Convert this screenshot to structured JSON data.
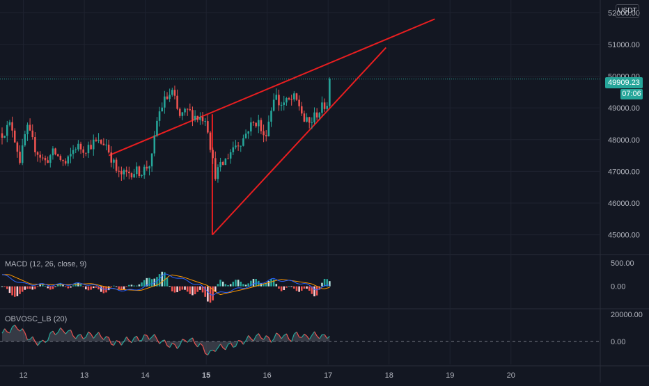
{
  "chart_data": {
    "type": "candlestick",
    "currency_label": "USDT",
    "price_axis": {
      "ylim": [
        44400,
        52400
      ],
      "ticks": [
        "52000.00",
        "51000.00",
        "50000.00",
        "49000.00",
        "48000.00",
        "47000.00",
        "46000.00",
        "45000.00"
      ],
      "tick_values": [
        52000,
        51000,
        50000,
        49000,
        48000,
        47000,
        46000,
        45000
      ]
    },
    "last_price": {
      "value": 49909.23,
      "label": "49909.23",
      "countdown": "07:06",
      "color": "#26a69a"
    },
    "x_axis": {
      "xlim": [
        11.65,
        21.5
      ],
      "labels": [
        "12",
        "13",
        "14",
        "15",
        "16",
        "17",
        "18",
        "19",
        "20"
      ],
      "label_values": [
        12,
        13,
        14,
        15,
        16,
        17,
        18,
        19,
        20
      ],
      "bold_labels": [
        "15"
      ]
    },
    "colors": {
      "up": "#26a69a",
      "down": "#ef5350",
      "pattern": "#e91e20"
    },
    "candle_anchors": [
      [
        11.65,
        48200
      ],
      [
        11.8,
        48500
      ],
      [
        11.95,
        47300
      ],
      [
        12.05,
        48400
      ],
      [
        12.2,
        47700
      ],
      [
        12.35,
        47300
      ],
      [
        12.5,
        47600
      ],
      [
        12.7,
        47200
      ],
      [
        12.85,
        47800
      ],
      [
        13.0,
        47700
      ],
      [
        13.15,
        47900
      ],
      [
        13.25,
        47900
      ],
      [
        13.35,
        47900
      ],
      [
        13.45,
        47400
      ],
      [
        13.55,
        46900
      ],
      [
        13.65,
        46900
      ],
      [
        13.8,
        47000
      ],
      [
        13.95,
        47000
      ],
      [
        14.1,
        47300
      ],
      [
        14.2,
        48700
      ],
      [
        14.3,
        49200
      ],
      [
        14.45,
        49500
      ],
      [
        14.55,
        48700
      ],
      [
        14.7,
        48900
      ],
      [
        14.85,
        48700
      ],
      [
        15.0,
        48700
      ],
      [
        15.06,
        47900
      ],
      [
        15.14,
        46900
      ],
      [
        15.3,
        47300
      ],
      [
        15.45,
        47800
      ],
      [
        15.6,
        48000
      ],
      [
        15.7,
        48400
      ],
      [
        15.85,
        48600
      ],
      [
        15.95,
        48000
      ],
      [
        16.05,
        48800
      ],
      [
        16.12,
        49500
      ],
      [
        16.2,
        49100
      ],
      [
        16.35,
        49200
      ],
      [
        16.45,
        49300
      ],
      [
        16.55,
        49000
      ],
      [
        16.6,
        48600
      ],
      [
        16.7,
        48500
      ],
      [
        16.8,
        48800
      ],
      [
        16.9,
        49000
      ],
      [
        17.0,
        49200
      ],
      [
        17.05,
        49909
      ]
    ],
    "pattern": {
      "upper_line": {
        "x": [
          13.4,
          18.75
        ],
        "y": [
          47500,
          51800
        ]
      },
      "lower_line": {
        "x": [
          15.1,
          17.95
        ],
        "y": [
          45000,
          50900
        ]
      },
      "drop_line": {
        "x": [
          15.1,
          15.1
        ],
        "y": [
          48800,
          45000
        ]
      }
    },
    "macd": {
      "label": "MACD (12, 26, close, 9)",
      "ticks": [
        "500.00",
        "0.00"
      ],
      "tick_values": [
        500,
        0
      ],
      "ylim": [
        -450,
        650
      ],
      "anchors": [
        [
          11.65,
          250
        ],
        [
          12.0,
          50
        ],
        [
          12.5,
          30
        ],
        [
          13.0,
          60
        ],
        [
          13.4,
          -60
        ],
        [
          13.8,
          -90
        ],
        [
          14.1,
          40
        ],
        [
          14.3,
          250
        ],
        [
          14.5,
          200
        ],
        [
          14.9,
          20
        ],
        [
          15.1,
          -180
        ],
        [
          15.3,
          -120
        ],
        [
          15.6,
          -30
        ],
        [
          15.9,
          80
        ],
        [
          16.1,
          150
        ],
        [
          16.3,
          120
        ],
        [
          16.6,
          60
        ],
        [
          16.8,
          -60
        ],
        [
          17.05,
          30
        ]
      ],
      "macd_color": "#2962ff",
      "signal_color": "#ff9800"
    },
    "obvosc": {
      "label": "OBVOSC_LB (20)",
      "ticks": [
        "20000.00",
        "0.00"
      ],
      "tick_values": [
        20000,
        0
      ],
      "ylim": [
        -17000,
        23000
      ],
      "anchors": [
        [
          11.65,
          6000
        ],
        [
          11.9,
          11000
        ],
        [
          12.1,
          2000
        ],
        [
          12.3,
          -2000
        ],
        [
          12.5,
          7000
        ],
        [
          12.7,
          8000
        ],
        [
          12.9,
          3000
        ],
        [
          13.1,
          5000
        ],
        [
          13.3,
          4000
        ],
        [
          13.5,
          -2000
        ],
        [
          13.7,
          1000
        ],
        [
          13.9,
          2000
        ],
        [
          14.1,
          4000
        ],
        [
          14.3,
          -1000
        ],
        [
          14.5,
          -4000
        ],
        [
          14.7,
          2000
        ],
        [
          14.9,
          -3000
        ],
        [
          15.05,
          -10000
        ],
        [
          15.15,
          -5000
        ],
        [
          15.3,
          -4000
        ],
        [
          15.5,
          -2000
        ],
        [
          15.7,
          2000
        ],
        [
          15.9,
          4000
        ],
        [
          16.05,
          1000
        ],
        [
          16.2,
          5000
        ],
        [
          16.4,
          2000
        ],
        [
          16.5,
          6000
        ],
        [
          16.6,
          3000
        ],
        [
          16.8,
          5000
        ],
        [
          16.95,
          3000
        ],
        [
          17.05,
          6000
        ]
      ],
      "up_color": "#26a69a",
      "down_color": "#ef5350"
    }
  }
}
